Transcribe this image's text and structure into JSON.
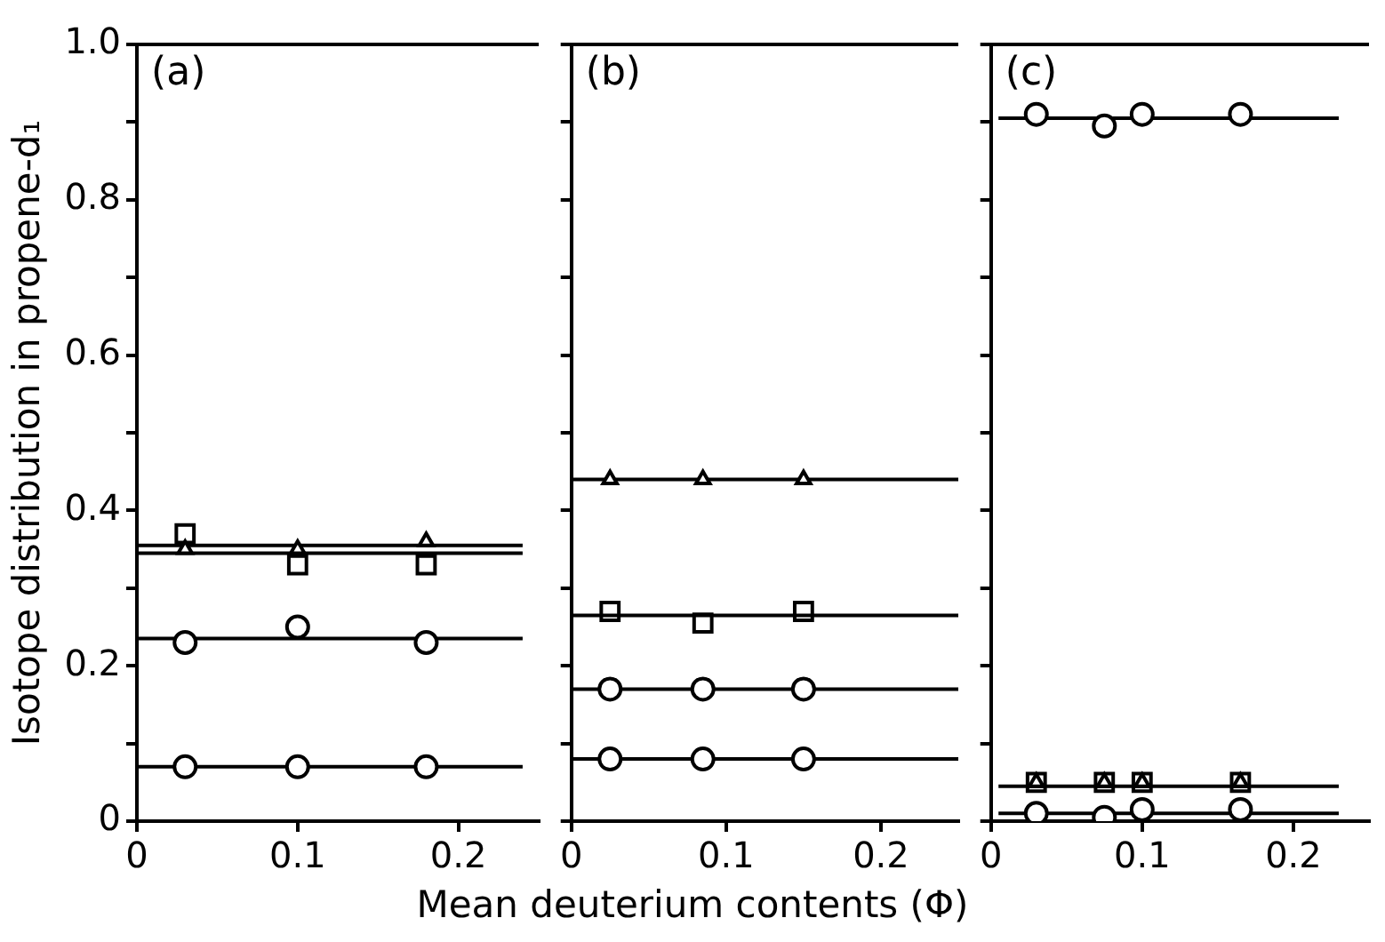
{
  "chart_data": [
    {
      "type": "scatter",
      "annotations": [
        "(a)"
      ],
      "ylabel": "Isotope distribution in propene-d₁",
      "xlim": [
        0,
        0.25
      ],
      "ylim": [
        0,
        1
      ],
      "xticks": [
        0,
        0.1,
        0.2
      ],
      "yticks": [
        0,
        {
          "value": 0.1,
          "label": null
        },
        0.2,
        {
          "value": 0.3,
          "label": null
        },
        0.4,
        {
          "value": 0.5,
          "label": null
        },
        0.6,
        {
          "value": 0.7,
          "label": null
        },
        0.8,
        {
          "value": 0.9,
          "label": null
        },
        {
          "value": 1,
          "label": "1.0"
        }
      ],
      "grid": false,
      "legend": false,
      "series": [
        {
          "type": "scatter",
          "marker": "square",
          "color": "#000000",
          "x": [
            0.03,
            0.1,
            0.18
          ],
          "values": [
            0.37,
            0.33,
            0.33
          ]
        },
        {
          "type": "scatter",
          "marker": "triangle",
          "color": "#000000",
          "x": [
            0.03,
            0.1,
            0.18
          ],
          "values": [
            0.35,
            0.35,
            0.36
          ]
        },
        {
          "type": "scatter",
          "marker": "circle",
          "color": "#000000",
          "x": [
            0.03,
            0.1,
            0.18
          ],
          "values": [
            0.23,
            0.25,
            0.23
          ]
        },
        {
          "type": "scatter",
          "marker": "circle",
          "color": "#000000",
          "x": [
            0.03,
            0.1,
            0.18
          ],
          "values": [
            0.07,
            0.07,
            0.07
          ]
        },
        {
          "type": "line",
          "marker": "none",
          "color": "#000000",
          "x": [
            0,
            0.24
          ],
          "values": [
            0.355,
            0.355
          ]
        },
        {
          "type": "line",
          "marker": "none",
          "color": "#000000",
          "x": [
            0,
            0.24
          ],
          "values": [
            0.345,
            0.345
          ]
        },
        {
          "type": "line",
          "marker": "none",
          "color": "#000000",
          "x": [
            0,
            0.24
          ],
          "values": [
            0.235,
            0.235
          ]
        },
        {
          "type": "line",
          "marker": "none",
          "color": "#000000",
          "x": [
            0,
            0.24
          ],
          "values": [
            0.07,
            0.07
          ]
        }
      ]
    },
    {
      "type": "scatter",
      "annotations": [
        "(b)"
      ],
      "xlabel": "Mean deuterium contents (Φ)",
      "xlim": [
        0,
        0.25
      ],
      "ylim": [
        0,
        1
      ],
      "xticks": [
        0,
        0.1,
        0.2
      ],
      "yticks": [
        0,
        0.1,
        0.2,
        0.3,
        0.4,
        0.5,
        0.6,
        0.7,
        0.8,
        0.9,
        1
      ],
      "tick_labels": "x",
      "grid": false,
      "legend": false,
      "series": [
        {
          "type": "scatter",
          "marker": "triangle",
          "color": "#000000",
          "x": [
            0.025,
            0.085,
            0.15
          ],
          "values": [
            0.44,
            0.44,
            0.44
          ]
        },
        {
          "type": "scatter",
          "marker": "square",
          "color": "#000000",
          "x": [
            0.025,
            0.085,
            0.15
          ],
          "values": [
            0.27,
            0.255,
            0.27
          ]
        },
        {
          "type": "scatter",
          "marker": "circle",
          "color": "#000000",
          "x": [
            0.025,
            0.085,
            0.15
          ],
          "values": [
            0.17,
            0.17,
            0.17
          ]
        },
        {
          "type": "scatter",
          "marker": "circle",
          "color": "#000000",
          "x": [
            0.025,
            0.085,
            0.15
          ],
          "values": [
            0.08,
            0.08,
            0.08
          ]
        },
        {
          "type": "line",
          "marker": "none",
          "color": "#000000",
          "x": [
            0,
            0.25
          ],
          "values": [
            0.44,
            0.44
          ]
        },
        {
          "type": "line",
          "marker": "none",
          "color": "#000000",
          "x": [
            0,
            0.25
          ],
          "values": [
            0.265,
            0.265
          ]
        },
        {
          "type": "line",
          "marker": "none",
          "color": "#000000",
          "x": [
            0,
            0.25
          ],
          "values": [
            0.17,
            0.17
          ]
        },
        {
          "type": "line",
          "marker": "none",
          "color": "#000000",
          "x": [
            0,
            0.25
          ],
          "values": [
            0.08,
            0.08
          ]
        }
      ]
    },
    {
      "type": "scatter",
      "annotations": [
        "(c)"
      ],
      "xlim": [
        0,
        0.25
      ],
      "ylim": [
        0,
        1
      ],
      "xticks": [
        0,
        0.1,
        0.2
      ],
      "yticks": [
        0,
        0.1,
        0.2,
        0.3,
        0.4,
        0.5,
        0.6,
        0.7,
        0.8,
        0.9,
        1
      ],
      "tick_labels": "x",
      "grid": false,
      "legend": false,
      "series": [
        {
          "type": "scatter",
          "marker": "circle",
          "color": "#000000",
          "x": [
            0.03,
            0.075,
            0.1,
            0.165
          ],
          "values": [
            0.91,
            0.895,
            0.91,
            0.91
          ]
        },
        {
          "type": "scatter",
          "marker": "triangle",
          "color": "#000000",
          "x": [
            0.03,
            0.075,
            0.1,
            0.165
          ],
          "values": [
            0.05,
            0.05,
            0.05,
            0.05
          ]
        },
        {
          "type": "scatter",
          "marker": "square",
          "color": "#000000",
          "x": [
            0.03,
            0.075,
            0.1,
            0.165
          ],
          "values": [
            0.05,
            0.05,
            0.05,
            0.05
          ]
        },
        {
          "type": "scatter",
          "marker": "circle",
          "color": "#000000",
          "x": [
            0.03,
            0.075,
            0.1,
            0.165
          ],
          "values": [
            0.01,
            0.005,
            0.015,
            0.015
          ]
        },
        {
          "type": "line",
          "marker": "none",
          "color": "#000000",
          "x": [
            0.005,
            0.23
          ],
          "values": [
            0.905,
            0.905
          ]
        },
        {
          "type": "line",
          "marker": "none",
          "color": "#000000",
          "x": [
            0.005,
            0.23
          ],
          "values": [
            0.045,
            0.045
          ]
        },
        {
          "type": "line",
          "marker": "none",
          "color": "#000000",
          "x": [
            0.005,
            0.23
          ],
          "values": [
            0.01,
            0.01
          ]
        }
      ]
    }
  ]
}
